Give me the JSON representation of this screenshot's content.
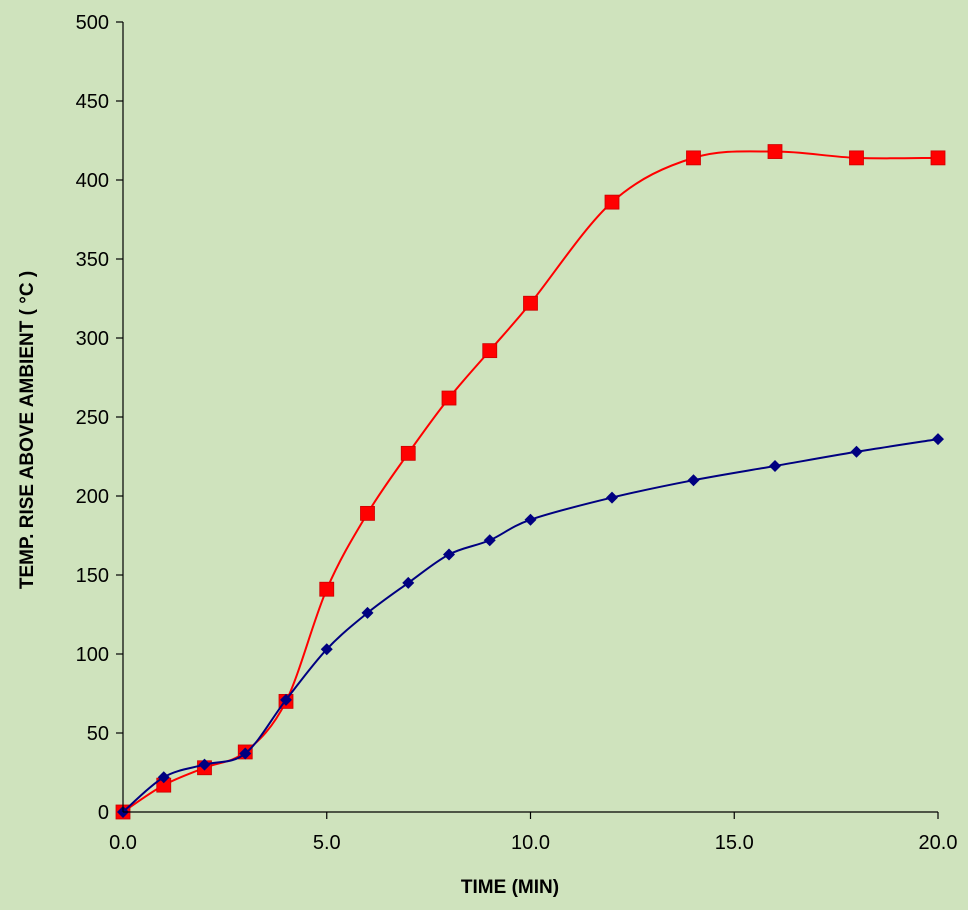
{
  "chart_data": {
    "type": "line",
    "title": "",
    "xlabel": "TIME (MIN)",
    "ylabel": "TEMP. RISE ABOVE AMBIENT ( °C )",
    "xlim": [
      0,
      20
    ],
    "ylim": [
      0,
      500
    ],
    "x_ticks": [
      "0.0",
      "5.0",
      "10.0",
      "15.0",
      "20.0"
    ],
    "x_tick_values": [
      0,
      5,
      10,
      15,
      20
    ],
    "y_ticks": [
      "0",
      "50",
      "100",
      "150",
      "200",
      "250",
      "300",
      "350",
      "400",
      "450",
      "500"
    ],
    "y_tick_values": [
      0,
      50,
      100,
      150,
      200,
      250,
      300,
      350,
      400,
      450,
      500
    ],
    "grid": false,
    "legend": "none",
    "series": [
      {
        "color": "#ff0000",
        "marker": "square",
        "x": [
          0,
          1,
          2,
          3,
          4,
          5,
          6,
          7,
          8,
          9,
          10,
          12,
          14,
          16,
          18,
          20
        ],
        "y": [
          0,
          17,
          28,
          38,
          70,
          141,
          189,
          227,
          262,
          292,
          322,
          386,
          414,
          418,
          414,
          414
        ]
      },
      {
        "color": "#000080",
        "marker": "diamond",
        "x": [
          0,
          1,
          2,
          3,
          4,
          5,
          6,
          7,
          8,
          9,
          10,
          12,
          14,
          16,
          18,
          20
        ],
        "y": [
          0,
          22,
          30,
          37,
          71,
          103,
          126,
          145,
          163,
          172,
          185,
          199,
          210,
          219,
          228,
          236
        ]
      }
    ]
  }
}
